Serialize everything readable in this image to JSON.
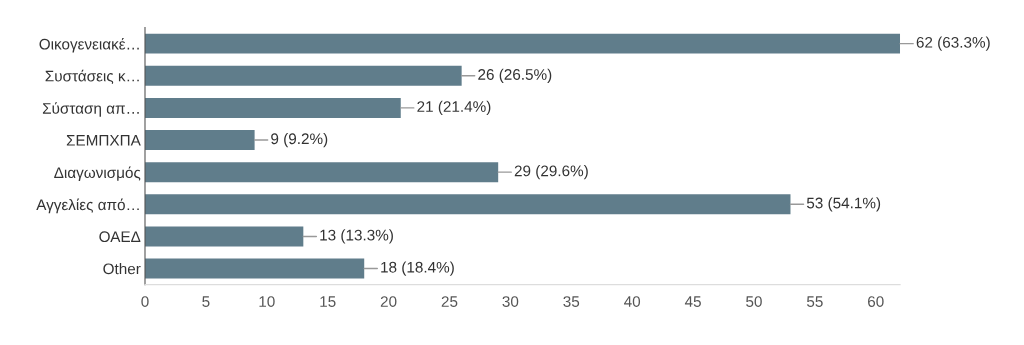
{
  "chart_data": {
    "type": "bar",
    "orientation": "horizontal",
    "categories": [
      "Οικογενειακέ…",
      "Συστάσεις κ…",
      "Σύσταση απ…",
      "ΣΕΜΠΧΠΑ",
      "Διαγωνισμός",
      "Αγγελίες από…",
      "ΟΑΕΔ",
      "Other"
    ],
    "values": [
      62,
      26,
      21,
      9,
      29,
      53,
      13,
      18
    ],
    "value_labels": [
      "62 (63.3%)",
      "26 (26.5%)",
      "21 (21.4%)",
      "9 (9.2%)",
      "29 (29.6%)",
      "53 (54.1%)",
      "13 (13.3%)",
      "18 (18.4%)"
    ],
    "color": "#607d8b",
    "xlim": [
      0,
      62
    ],
    "xticks": [
      0,
      5,
      10,
      15,
      20,
      25,
      30,
      35,
      40,
      45,
      50,
      55,
      60
    ],
    "grid": false,
    "legend": false
  }
}
